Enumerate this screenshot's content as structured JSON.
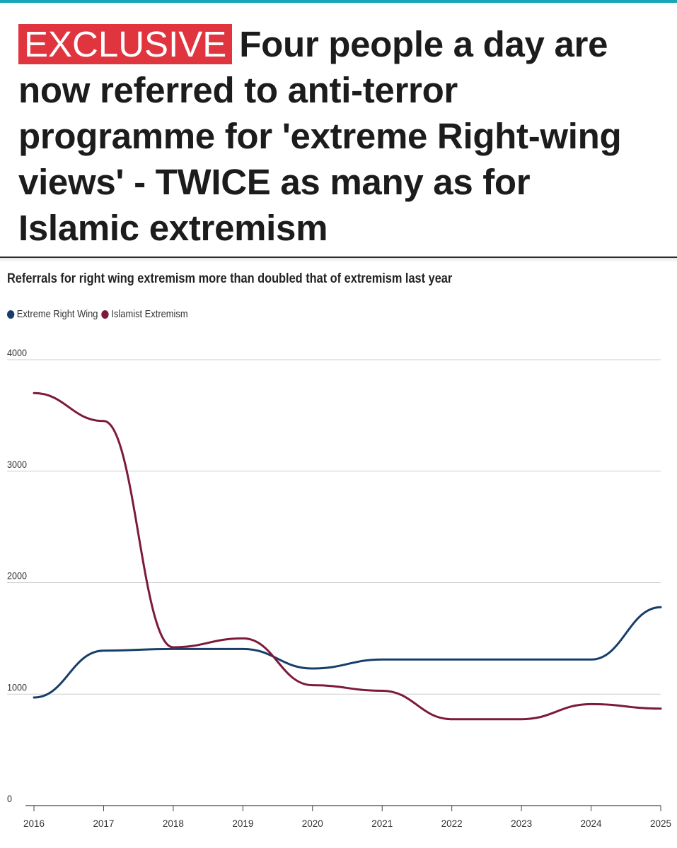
{
  "headline": {
    "badge": "EXCLUSIVE",
    "text": "Four people a day are now referred to anti-terror programme for 'extreme Right-wing views' - TWICE as many as for Islamic extremism"
  },
  "colors": {
    "accent_rule": "#1aa6b7",
    "badge_bg": "#e0353f",
    "series_right_wing": "#173e6b",
    "series_islamist": "#7d1a3a",
    "grid": "#cccccc"
  },
  "chart_data": {
    "type": "line",
    "title": "Referrals for right wing extremism more than doubled that of extremism last year",
    "xlabel": "",
    "ylabel": "",
    "x": [
      2016,
      2017,
      2018,
      2019,
      2020,
      2021,
      2022,
      2023,
      2024,
      2025
    ],
    "xticks": [
      "2016",
      "2017",
      "2018",
      "2019",
      "2020",
      "2021",
      "2022",
      "2023",
      "2024",
      "2025"
    ],
    "yticks": [
      "0",
      "1000",
      "2000",
      "3000",
      "4000"
    ],
    "ylim": [
      0,
      4000
    ],
    "grid": true,
    "legend_position": "top-left",
    "series": [
      {
        "name": "Extreme Right Wing",
        "values": [
          970,
          1390,
          1405,
          1405,
          1230,
          1310,
          1310,
          1310,
          1310,
          1780
        ]
      },
      {
        "name": "Islamist Extremism",
        "values": [
          3700,
          3450,
          1420,
          1500,
          1080,
          1030,
          775,
          775,
          910,
          870
        ]
      }
    ]
  }
}
